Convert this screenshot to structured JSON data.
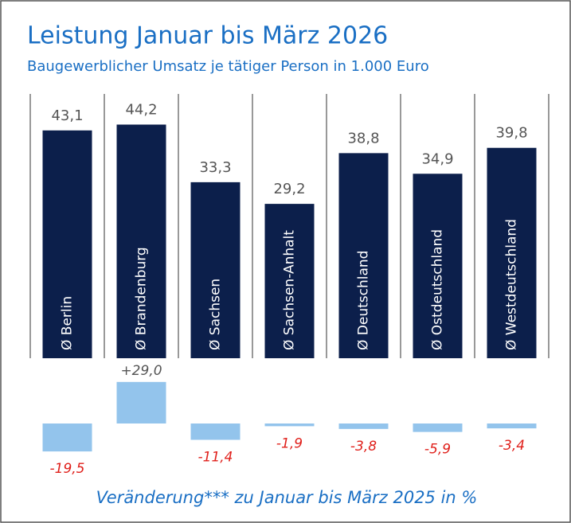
{
  "chart_data": [
    {
      "type": "bar",
      "title": "Leistung Januar bis März 2026",
      "subtitle": "Baugewerblicher Umsatz je tätiger Person in 1.000 Euro",
      "categories": [
        "Ø Berlin",
        "Ø Brandenburg",
        "Ø Sachsen",
        "Ø Sachsen-Anhalt",
        "Ø Deutschland",
        "Ø Ostdeutschland",
        "Ø Westdeutschland"
      ],
      "values": [
        43.1,
        44.2,
        33.3,
        29.2,
        38.8,
        34.9,
        39.8
      ],
      "value_labels": [
        "43,1",
        "44,2",
        "33,3",
        "29,2",
        "38,8",
        "34,9",
        "39,8"
      ],
      "color": "#0c1f4b"
    },
    {
      "type": "bar",
      "annotation": "Veränderung*** zu Januar bis März 2025 in %",
      "values": [
        -19.5,
        29.0,
        -11.4,
        -1.9,
        -3.8,
        -5.9,
        -3.4
      ],
      "value_labels": [
        "-19,5",
        "+29,0",
        "-11,4",
        "-1,9",
        "-3,8",
        "-5,9",
        "-3,4"
      ],
      "color": "#93c4ec",
      "negative_label_color": "#e0201b",
      "positive_label_color": "#555555"
    }
  ]
}
